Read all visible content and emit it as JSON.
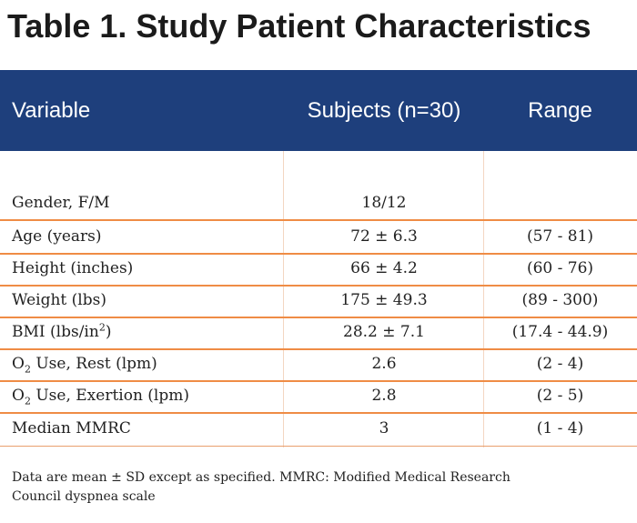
{
  "title": "Table 1. Study Patient Characteristics",
  "columns": {
    "variable": "Variable",
    "subjects": "Subjects (n=30)",
    "range": "Range"
  },
  "rows": [
    {
      "variable": "Gender, F/M",
      "subjects": "18/12",
      "range": ""
    },
    {
      "variable": "Age (years)",
      "subjects": "72 ± 6.3",
      "range": "(57 - 81)"
    },
    {
      "variable": "Height (inches)",
      "subjects": "66 ± 4.2",
      "range": "(60 - 76)"
    },
    {
      "variable": "Weight (lbs)",
      "subjects": "175 ± 49.3",
      "range": "(89 - 300)"
    },
    {
      "variable_pre": "BMI (lbs/in",
      "variable_sup": "2",
      "variable_post": ")",
      "subjects": "28.2 ± 7.1",
      "range": "(17.4 - 44.9)"
    },
    {
      "variable_pre": "O",
      "variable_sub": "2",
      "variable_post": " Use, Rest (lpm)",
      "subjects": "2.6",
      "range": "(2 - 4)"
    },
    {
      "variable_pre": "O",
      "variable_sub": "2",
      "variable_post": " Use, Exertion (lpm)",
      "subjects": "2.8",
      "range": "(2 - 5)"
    },
    {
      "variable": "Median MMRC",
      "subjects": "3",
      "range": "(1 - 4)"
    }
  ],
  "footnote": {
    "line1": "Data are mean ± SD except as specified.  MMRC: Modified Medical Research",
    "line2": "Council dyspnea scale"
  },
  "colors": {
    "header_bg": "#1e3f7c",
    "row_rule": "#ef8c45"
  }
}
